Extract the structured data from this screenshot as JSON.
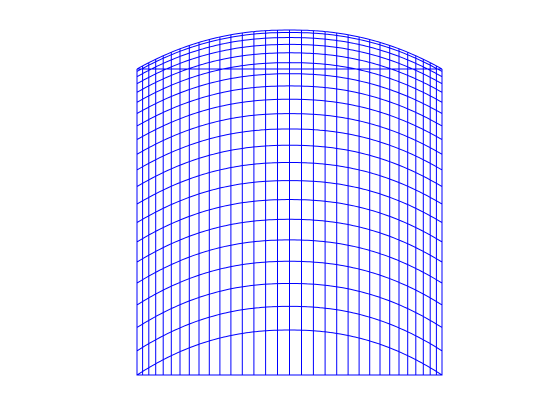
{
  "figure": {
    "background_color": "#ffffff",
    "line_color": "#0000ff",
    "visible_text": []
  },
  "mesh": {
    "type": "wireframe-surface",
    "columns": 33,
    "rows": 21,
    "description_shape": "dome"
  }
}
